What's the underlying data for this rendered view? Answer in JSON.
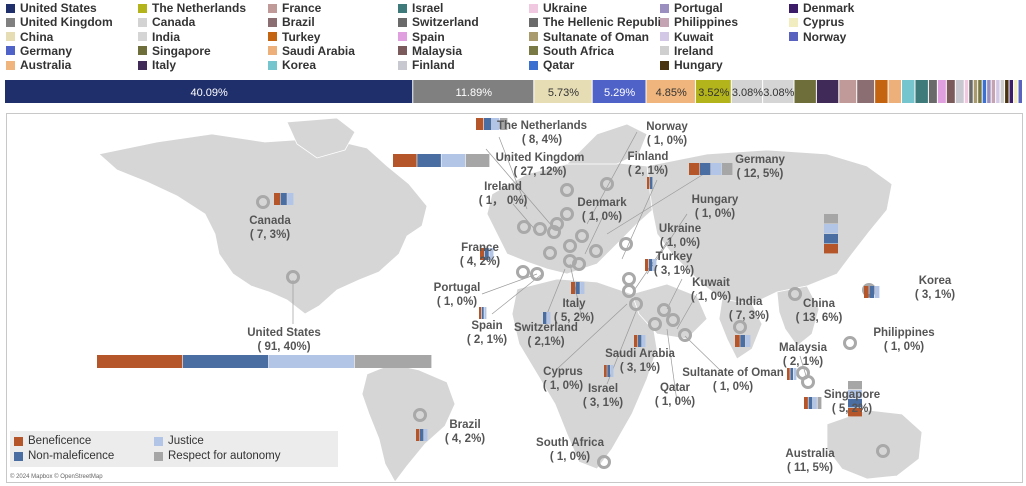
{
  "chart_data": {
    "type": "bar",
    "countries": [
      {
        "name": "United States",
        "color": "#1f2f6b"
      },
      {
        "name": "United Kingdom",
        "color": "#808080"
      },
      {
        "name": "China",
        "color": "#e7ddb5"
      },
      {
        "name": "Germany",
        "color": "#4f62c8"
      },
      {
        "name": "Australia",
        "color": "#f0b57c"
      },
      {
        "name": "The Netherlands",
        "color": "#b3b31c"
      },
      {
        "name": "Canada",
        "color": "#d3d3d3"
      },
      {
        "name": "India",
        "color": "#d5d5d5"
      },
      {
        "name": "Singapore",
        "color": "#6e6e3a"
      },
      {
        "name": "Italy",
        "color": "#3f2a58"
      },
      {
        "name": "France",
        "color": "#c09a98"
      },
      {
        "name": "Brazil",
        "color": "#8a6e72"
      },
      {
        "name": "Turkey",
        "color": "#c46410"
      },
      {
        "name": "Saudi Arabia",
        "color": "#eeb07a"
      },
      {
        "name": "Korea",
        "color": "#75c5cf"
      },
      {
        "name": "Israel",
        "color": "#3e7a7a"
      },
      {
        "name": "Switzerland",
        "color": "#6a6a6a"
      },
      {
        "name": "Spain",
        "color": "#e0a0e0"
      },
      {
        "name": "Malaysia",
        "color": "#7a5a5a"
      },
      {
        "name": "Finland",
        "color": "#c8c8d0"
      },
      {
        "name": "Ukraine",
        "color": "#f0c8e0"
      },
      {
        "name": "The Hellenic Republic",
        "color": "#6a6a6a"
      },
      {
        "name": "Sultanate of Oman",
        "color": "#a99b6d"
      },
      {
        "name": "South Africa",
        "color": "#797946"
      },
      {
        "name": "Qatar",
        "color": "#3b6fd0"
      },
      {
        "name": "Portugal",
        "color": "#9a8fbf"
      },
      {
        "name": "Philippines",
        "color": "#c4a3b3"
      },
      {
        "name": "Kuwait",
        "color": "#d3c9e6"
      },
      {
        "name": "Ireland",
        "color": "#cfcfcf"
      },
      {
        "name": "Hungary",
        "color": "#4a3410"
      },
      {
        "name": "Denmark",
        "color": "#3c1c68"
      },
      {
        "name": "Cyprus",
        "color": "#f1edc1"
      },
      {
        "name": "Norway",
        "color": "#5a62c0"
      }
    ],
    "share_values": [
      40.09,
      11.89,
      5.73,
      5.29,
      4.85,
      3.52,
      3.08,
      3.08,
      2.2,
      2.2,
      1.76,
      1.76,
      1.32,
      1.32,
      1.32,
      1.32,
      0.88,
      0.88,
      0.88,
      0.88,
      0.44,
      0.44,
      0.44,
      0.44,
      0.44,
      0.44,
      0.44,
      0.44,
      0.44,
      0.44,
      0.44,
      0.44,
      0.44
    ],
    "share_labels": [
      "40.09%",
      "11.89%",
      "5.73%",
      "5.29%",
      "4.85%",
      "3.52%",
      "3.08%",
      "3.08%"
    ],
    "share_colors": [
      "#1f2f6b",
      "#808080",
      "#e7ddb5",
      "#4f62c8",
      "#f0b57c",
      "#b3b31c",
      "#d3d3d3",
      "#d5d5d5",
      "#6e6e3a",
      "#3f2a58",
      "#c09a98",
      "#8a6e72",
      "#c46410",
      "#eeb07a",
      "#75c5cf",
      "#3e7a7a",
      "#6a6a6a",
      "#e0a0e0",
      "#7a5a5a",
      "#c8c8d0",
      "#f0c8e0",
      "#6a6a6a",
      "#a99b6d",
      "#797946",
      "#3b6fd0",
      "#9a8fbf",
      "#c4a3b3",
      "#d3c9e6",
      "#cfcfcf",
      "#4a3410",
      "#3c1c68",
      "#f1edc1",
      "#5a62c0"
    ],
    "principles": [
      {
        "name": "Beneficence",
        "color": "#b5562a"
      },
      {
        "name": "Non-maleficence",
        "color": "#4a6ea2"
      },
      {
        "name": "Justice",
        "color": "#b2c5e6"
      },
      {
        "name": "Respect for autonomy",
        "color": "#a6a6a6"
      }
    ],
    "map_labels": [
      {
        "name": "The Netherlands",
        "count": "( 8, 4%)"
      },
      {
        "name": "Norway",
        "count": "( 1, 0%)"
      },
      {
        "name": "United Kingdom",
        "count": "( 27, 12%)"
      },
      {
        "name": "Finland",
        "count": "( 2, 1%)"
      },
      {
        "name": "Germany",
        "count": "( 12, 5%)"
      },
      {
        "name": "Ireland",
        "count": "( 1，  0%)"
      },
      {
        "name": "Denmark",
        "count": "( 1, 0%)"
      },
      {
        "name": "Hungary",
        "count": "( 1, 0%)"
      },
      {
        "name": "Canada",
        "count": "( 7, 3%)"
      },
      {
        "name": "Ukraine",
        "count": "( 1, 0%)"
      },
      {
        "name": "France",
        "count": "( 4, 2%)"
      },
      {
        "name": "Turkey",
        "count": "( 3, 1%)"
      },
      {
        "name": "Korea",
        "count": "( 3, 1%)"
      },
      {
        "name": "Portugal",
        "count": "( 1, 0%)"
      },
      {
        "name": "Kuwait",
        "count": "( 1, 0%)"
      },
      {
        "name": "Italy",
        "count": "( 5, 2%)"
      },
      {
        "name": "India",
        "count": "( 7, 3%)"
      },
      {
        "name": "China",
        "count": "( 13, 6%)"
      },
      {
        "name": "Spain",
        "count": "( 2, 1%)"
      },
      {
        "name": "Switzerland",
        "count": "( 2,1%)"
      },
      {
        "name": "United States",
        "count": "( 91, 40%)"
      },
      {
        "name": "Philippines",
        "count": "( 1, 0%)"
      },
      {
        "name": "Saudi Arabia",
        "count": "( 3, 1%)"
      },
      {
        "name": "Malaysia",
        "count": "( 2, 1%)"
      },
      {
        "name": "Sultanate of Oman",
        "count": "( 1,    0%)"
      },
      {
        "name": "Cyprus",
        "count": "( 1, 0%)"
      },
      {
        "name": "Israel",
        "count": "( 3, 1%)"
      },
      {
        "name": "Qatar",
        "count": "( 1, 0%)"
      },
      {
        "name": "Singapore",
        "count": "( 5, 2%)"
      },
      {
        "name": "Brazil",
        "count": "( 4, 2%)"
      },
      {
        "name": "South Africa",
        "count": "( 1, 0%)"
      },
      {
        "name": "Australia",
        "count": "( 11, 5%)"
      }
    ],
    "principle_bars": [
      {
        "country": "United States",
        "values": [
          1,
          1,
          1,
          0.9
        ]
      },
      {
        "country": "United Kingdom",
        "values": [
          1,
          1,
          1,
          1
        ]
      },
      {
        "country": "Germany",
        "values": [
          1,
          1,
          1,
          1
        ]
      },
      {
        "country": "The Netherlands",
        "values": [
          1,
          1,
          1,
          1
        ]
      },
      {
        "country": "China",
        "values": [
          1,
          1,
          1,
          1
        ]
      },
      {
        "country": "Australia",
        "values": [
          1,
          1,
          1,
          1
        ]
      },
      {
        "country": "Canada",
        "values": [
          1,
          1,
          1,
          0
        ]
      },
      {
        "country": "India",
        "values": [
          1,
          1,
          1,
          0
        ]
      },
      {
        "country": "Singapore",
        "values": [
          1,
          1,
          1,
          1
        ]
      },
      {
        "country": "Italy",
        "values": [
          1,
          1,
          1,
          0
        ]
      },
      {
        "country": "France",
        "values": [
          1,
          1,
          1,
          0
        ]
      },
      {
        "country": "Brazil",
        "values": [
          1,
          1,
          1,
          0
        ]
      },
      {
        "country": "Korea",
        "values": [
          1,
          1,
          1,
          0
        ]
      },
      {
        "country": "Turkey",
        "values": [
          1,
          1,
          1,
          0
        ]
      },
      {
        "country": "Saudi Arabia",
        "values": [
          1,
          1,
          1,
          0
        ]
      },
      {
        "country": "Israel",
        "values": [
          1,
          1,
          1,
          0
        ]
      },
      {
        "country": "Spain",
        "values": [
          1,
          1,
          1,
          0
        ]
      },
      {
        "country": "Switzerland",
        "values": [
          0,
          1,
          1,
          0
        ]
      },
      {
        "country": "Malaysia",
        "values": [
          1,
          1,
          1,
          0
        ]
      },
      {
        "country": "Finland",
        "values": [
          1,
          1,
          0,
          0
        ]
      }
    ]
  },
  "credit": "© 2024 Mapbox © OpenStreetMap"
}
